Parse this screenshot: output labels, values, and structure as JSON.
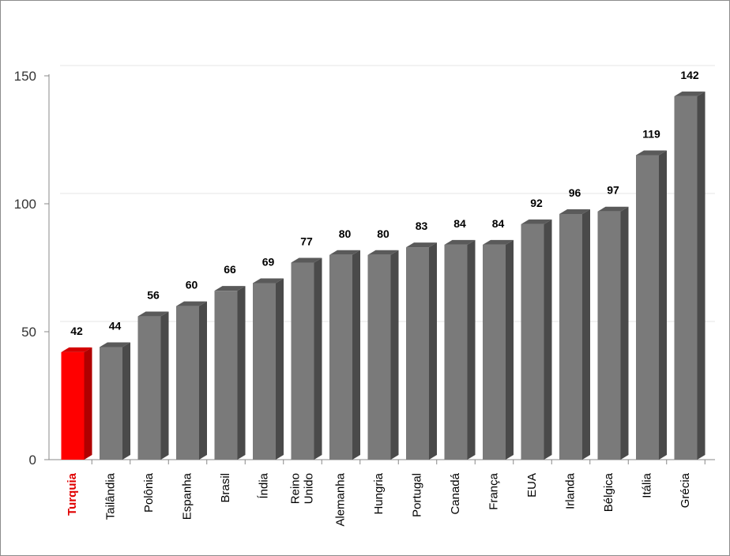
{
  "chart_data": {
    "type": "bar",
    "title": "",
    "xlabel": "",
    "ylabel": "",
    "ylim": [
      0,
      150
    ],
    "yticks": [
      0,
      50,
      100,
      150
    ],
    "grid": true,
    "categories": [
      [
        "Turquia"
      ],
      [
        "Tailândia"
      ],
      [
        "Polônia"
      ],
      [
        "Espanha"
      ],
      [
        "Brasil"
      ],
      [
        "Índia"
      ],
      [
        "Reino",
        "Unido"
      ],
      [
        "Alemanha"
      ],
      [
        "Hungria"
      ],
      [
        "Portugal"
      ],
      [
        "Canadá"
      ],
      [
        "França"
      ],
      [
        "EUA"
      ],
      [
        "Irlanda"
      ],
      [
        "Bélgica"
      ],
      [
        "Itália"
      ],
      [
        "Grécia"
      ]
    ],
    "values": [
      42,
      44,
      56,
      60,
      66,
      69,
      77,
      80,
      80,
      83,
      84,
      84,
      92,
      96,
      97,
      119,
      142
    ],
    "highlight_index": 0,
    "colors": {
      "bar": "#7a7a7a",
      "bar_side": "#4a4a4a",
      "bar_top": "#5a5a5a",
      "highlight": "#ff0000",
      "highlight_side": "#b00000",
      "highlight_top": "#d40000",
      "grid": "#e6e6e6",
      "axis": "#888888"
    }
  }
}
